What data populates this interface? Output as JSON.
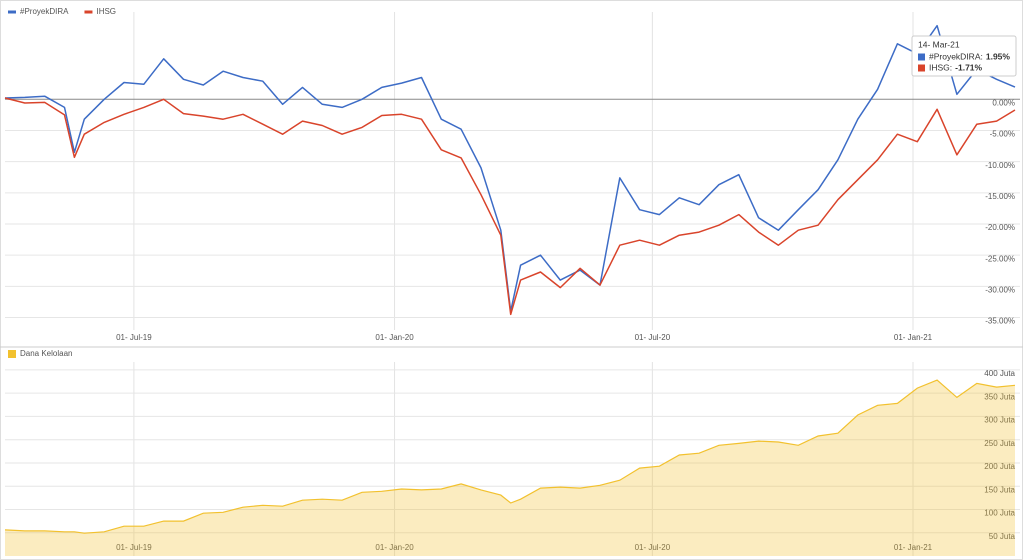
{
  "chart_data": [
    {
      "type": "line",
      "x": [
        "2019-04-01",
        "2019-04-15",
        "2019-04-29",
        "2019-05-13",
        "2019-05-20",
        "2019-05-27",
        "2019-06-10",
        "2019-06-24",
        "2019-07-08",
        "2019-07-22",
        "2019-08-05",
        "2019-08-19",
        "2019-09-02",
        "2019-09-16",
        "2019-09-30",
        "2019-10-14",
        "2019-10-28",
        "2019-11-11",
        "2019-11-25",
        "2019-12-09",
        "2019-12-23",
        "2020-01-06",
        "2020-01-20",
        "2020-02-03",
        "2020-02-17",
        "2020-03-02",
        "2020-03-16",
        "2020-03-23",
        "2020-03-30",
        "2020-04-13",
        "2020-04-27",
        "2020-05-11",
        "2020-05-25",
        "2020-06-08",
        "2020-06-22",
        "2020-07-06",
        "2020-07-20",
        "2020-08-03",
        "2020-08-17",
        "2020-08-31",
        "2020-09-14",
        "2020-09-28",
        "2020-10-12",
        "2020-10-26",
        "2020-11-09",
        "2020-11-23",
        "2020-12-07",
        "2020-12-21",
        "2021-01-04",
        "2021-01-18",
        "2021-02-01",
        "2021-02-15",
        "2021-03-01",
        "2021-03-14"
      ],
      "series": [
        {
          "name": "#ProyekDIRA",
          "color": "#3d6cc6",
          "values": [
            0.2,
            0.3,
            0.5,
            -1.3,
            -8.5,
            -3.2,
            0,
            2.7,
            2.4,
            6.5,
            3.2,
            2.3,
            4.5,
            3.5,
            2.9,
            -0.8,
            1.9,
            -0.8,
            -1.3,
            0,
            1.9,
            2.6,
            3.5,
            -3.2,
            -4.8,
            -11,
            -21,
            -34,
            -26.6,
            -25,
            -29,
            -27.4,
            -29.8,
            -12.6,
            -17.7,
            -18.5,
            -15.8,
            -16.9,
            -13.7,
            -12.1,
            -19,
            -21,
            -17.7,
            -14.5,
            -9.7,
            -3.2,
            1.6,
            8.9,
            7.3,
            11.8,
            0.8,
            4.8,
            3.2,
            1.95
          ]
        },
        {
          "name": "IHSG",
          "color": "#d9442b",
          "values": [
            0.2,
            -0.6,
            -0.5,
            -2.5,
            -9.3,
            -5.6,
            -3.7,
            -2.4,
            -1.3,
            0,
            -2.3,
            -2.7,
            -3.2,
            -2.4,
            -4,
            -5.6,
            -3.5,
            -4.2,
            -5.6,
            -4.5,
            -2.6,
            -2.4,
            -3.2,
            -8.1,
            -9.4,
            -15.3,
            -21.8,
            -34.5,
            -29,
            -27.7,
            -30.2,
            -27.1,
            -29.8,
            -23.4,
            -22.6,
            -23.4,
            -21.8,
            -21.3,
            -20.2,
            -18.5,
            -21.3,
            -23.4,
            -21,
            -20.2,
            -16.1,
            -12.9,
            -9.7,
            -5.6,
            -6.8,
            -1.6,
            -8.9,
            -4,
            -3.5,
            -1.71
          ]
        }
      ],
      "xlim": [
        "2019-04-01",
        "2021-03-14"
      ],
      "xticks": [
        {
          "value": "2019-07-01",
          "label": "01- Jul-19"
        },
        {
          "value": "2020-01-01",
          "label": "01- Jan-20"
        },
        {
          "value": "2020-07-01",
          "label": "01- Jul-20"
        },
        {
          "value": "2021-01-01",
          "label": "01- Jan-21"
        }
      ],
      "ylim": [
        -37,
        14
      ],
      "yticks": [
        {
          "value": 0,
          "label": "0.00%"
        },
        {
          "value": -5,
          "label": "-5.00%"
        },
        {
          "value": -10,
          "label": "-10.00%"
        },
        {
          "value": -15,
          "label": "-15.00%"
        },
        {
          "value": -20,
          "label": "-20.00%"
        },
        {
          "value": -25,
          "label": "-25.00%"
        },
        {
          "value": -30,
          "label": "-30.00%"
        },
        {
          "value": -35,
          "label": "-35.00%"
        }
      ],
      "grid": true,
      "tooltip": {
        "title": "14- Mar-21",
        "items": [
          {
            "label": "#ProyekDIRA:",
            "value": "1.95%"
          },
          {
            "label": "IHSG:",
            "value": "-1.71%"
          }
        ]
      }
    },
    {
      "type": "area",
      "x": [
        "2019-04-01",
        "2019-04-15",
        "2019-04-29",
        "2019-05-13",
        "2019-05-20",
        "2019-05-27",
        "2019-06-10",
        "2019-06-24",
        "2019-07-08",
        "2019-07-22",
        "2019-08-05",
        "2019-08-19",
        "2019-09-02",
        "2019-09-16",
        "2019-09-30",
        "2019-10-14",
        "2019-10-28",
        "2019-11-11",
        "2019-11-25",
        "2019-12-09",
        "2019-12-23",
        "2020-01-06",
        "2020-01-20",
        "2020-02-03",
        "2020-02-17",
        "2020-03-02",
        "2020-03-16",
        "2020-03-23",
        "2020-03-30",
        "2020-04-13",
        "2020-04-27",
        "2020-05-11",
        "2020-05-25",
        "2020-06-08",
        "2020-06-22",
        "2020-07-06",
        "2020-07-20",
        "2020-08-03",
        "2020-08-17",
        "2020-08-31",
        "2020-09-14",
        "2020-09-28",
        "2020-10-12",
        "2020-10-26",
        "2020-11-09",
        "2020-11-23",
        "2020-12-07",
        "2020-12-21",
        "2021-01-04",
        "2021-01-18",
        "2021-02-01",
        "2021-02-15",
        "2021-03-01",
        "2021-03-14"
      ],
      "series": [
        {
          "name": "Dana Kelolaan",
          "color": "#f2c12e",
          "values": [
            56,
            54,
            54,
            52,
            52,
            49,
            52,
            64,
            64,
            75,
            75,
            92,
            94,
            105,
            109,
            107,
            120,
            122,
            120,
            137,
            139,
            144,
            142,
            144,
            155,
            142,
            131,
            114,
            122,
            146,
            148,
            146,
            152,
            163,
            189,
            193,
            217,
            221,
            238,
            242,
            247,
            245,
            238,
            258,
            264,
            303,
            324,
            328,
            361,
            378,
            341,
            371,
            363,
            367
          ]
        }
      ],
      "xlim": [
        "2019-04-01",
        "2021-03-14"
      ],
      "xticks": [
        {
          "value": "2019-07-01",
          "label": "01- Jul-19"
        },
        {
          "value": "2020-01-01",
          "label": "01- Jan-20"
        },
        {
          "value": "2020-07-01",
          "label": "01- Jul-20"
        },
        {
          "value": "2021-01-01",
          "label": "01- Jan-21"
        }
      ],
      "ylim": [
        0,
        417
      ],
      "yticks": [
        {
          "value": 50,
          "label": "50 Juta"
        },
        {
          "value": 100,
          "label": "100 Juta"
        },
        {
          "value": 150,
          "label": "150 Juta"
        },
        {
          "value": 200,
          "label": "200 Juta"
        },
        {
          "value": 250,
          "label": "250 Juta"
        },
        {
          "value": 300,
          "label": "300 Juta"
        },
        {
          "value": 350,
          "label": "350 Juta"
        },
        {
          "value": 400,
          "label": "400 Juta"
        }
      ],
      "grid": true
    }
  ]
}
